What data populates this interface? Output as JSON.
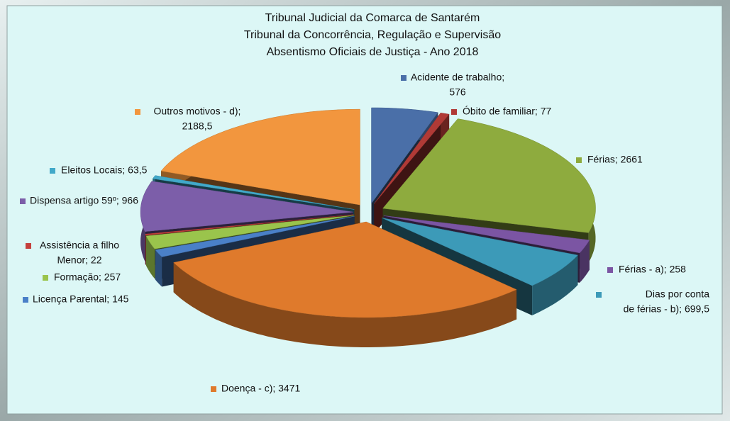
{
  "chart_data": {
    "type": "pie",
    "title": [
      "Tribunal Judicial da Comarca de Santarém",
      "Tribunal da Concorrência, Regulação e Supervisão",
      "Absentismo Oficiais de Justiça - Ano 2018"
    ],
    "categories": [
      "Acidente de trabalho",
      "Óbito de familiar",
      "Férias",
      "Férias  - a)",
      "Dias por conta de férias - b)",
      "Doença - c)",
      "Licença Parental",
      "Formação",
      "Assistência a filho Menor",
      "Dispensa artigo 59º",
      "Eleitos Locais",
      "Outros motivos - d)"
    ],
    "values": [
      576,
      77,
      2661,
      258,
      699.5,
      3471,
      145,
      257,
      22,
      966,
      63.5,
      2188.5
    ],
    "labels": [
      [
        "Acidente de trabalho;",
        "576"
      ],
      [
        "Óbito de familiar; 77"
      ],
      [
        "Férias; 2661"
      ],
      [
        "Férias  - a); 258"
      ],
      [
        "Dias por conta",
        "de férias - b); 699,5"
      ],
      [
        "Doença - c); 3471"
      ],
      [
        "Licença Parental; 145"
      ],
      [
        "Formação; 257"
      ],
      [
        "Assistência a filho",
        "Menor; 22"
      ],
      [
        "Dispensa artigo 59º; 966"
      ],
      [
        "Eleitos Locais; 63,5"
      ],
      [
        "Outros motivos - d);",
        "2188,5"
      ]
    ],
    "colors": [
      "#4a6fa8",
      "#b03a36",
      "#8eab3e",
      "#7b55a3",
      "#3c9ab8",
      "#df7a2c",
      "#4a80c8",
      "#9ac44c",
      "#c4403c",
      "#7c5ea9",
      "#42a9c9",
      "#f2963e"
    ]
  }
}
